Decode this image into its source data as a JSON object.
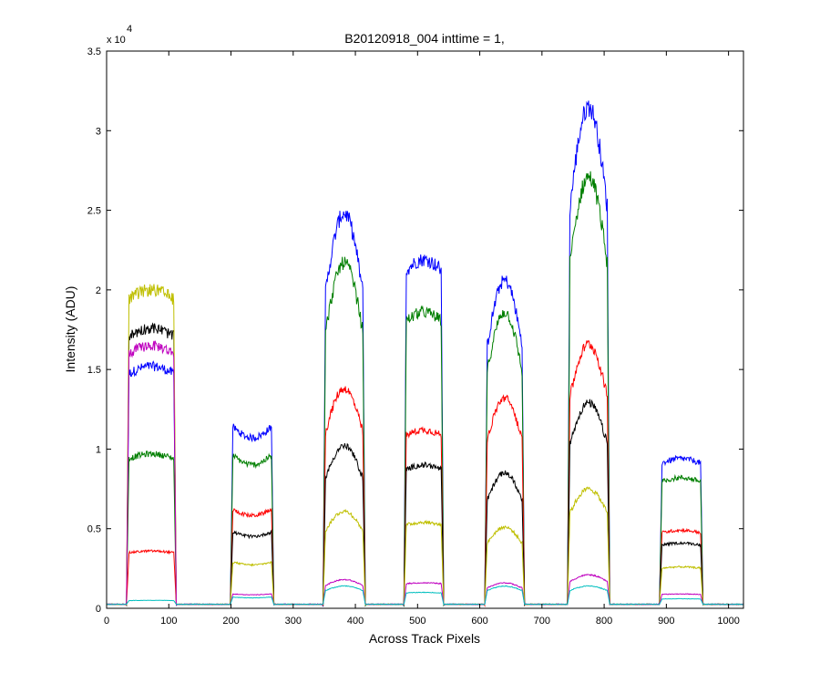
{
  "chart_data": {
    "type": "line",
    "title": "B20120918_004 inttime = 1,",
    "xlabel": "Across Track Pixels",
    "ylabel": "Intensity (ADU)",
    "ymultiplier": {
      "base": "x 10",
      "exponent": "4"
    },
    "xlim": [
      0,
      1024
    ],
    "ylim": [
      0,
      35000
    ],
    "xticks": [
      0,
      100,
      200,
      300,
      400,
      500,
      600,
      700,
      800,
      900,
      1000
    ],
    "xtick_labels": [
      "0",
      "100",
      "200",
      "300",
      "400",
      "500",
      "600",
      "700",
      "800",
      "900",
      "1000"
    ],
    "yticks": [
      0,
      5000,
      10000,
      15000,
      20000,
      25000,
      30000,
      35000
    ],
    "ytick_labels": [
      "0",
      "0.5",
      "1",
      "1.5",
      "2",
      "2.5",
      "3",
      "3.5"
    ],
    "grid": false,
    "legend": "none",
    "baseline": 250,
    "footprints": [
      {
        "start": 36,
        "end": 108,
        "shape": "flat"
      },
      {
        "start": 203,
        "end": 265,
        "shape": "dip"
      },
      {
        "start": 352,
        "end": 412,
        "shape": "peak"
      },
      {
        "start": 482,
        "end": 538,
        "shape": "flat"
      },
      {
        "start": 612,
        "end": 668,
        "shape": "peak"
      },
      {
        "start": 745,
        "end": 805,
        "shape": "peak"
      },
      {
        "start": 893,
        "end": 955,
        "shape": "flat"
      }
    ],
    "series": [
      {
        "color": "#0000ff",
        "values": [
          15200,
          11400,
          24800,
          21900,
          20600,
          31500,
          9400
        ]
      },
      {
        "color": "#007f00",
        "values": [
          9700,
          9600,
          21700,
          18600,
          18600,
          27100,
          8200
        ]
      },
      {
        "color": "#ff0000",
        "values": [
          3600,
          6200,
          13800,
          11200,
          13200,
          16600,
          4900
        ]
      },
      {
        "color": "#000000",
        "values": [
          17600,
          4800,
          10200,
          9000,
          8500,
          12900,
          4100
        ]
      },
      {
        "color": "#bfbf00",
        "values": [
          20000,
          2900,
          6100,
          5400,
          5100,
          7500,
          2600
        ]
      },
      {
        "color": "#bf00bf",
        "values": [
          16500,
          900,
          1800,
          1600,
          1600,
          2100,
          900
        ]
      },
      {
        "color": "#00bfbf",
        "values": [
          500,
          700,
          1400,
          1000,
          1400,
          1400,
          600
        ]
      }
    ]
  }
}
